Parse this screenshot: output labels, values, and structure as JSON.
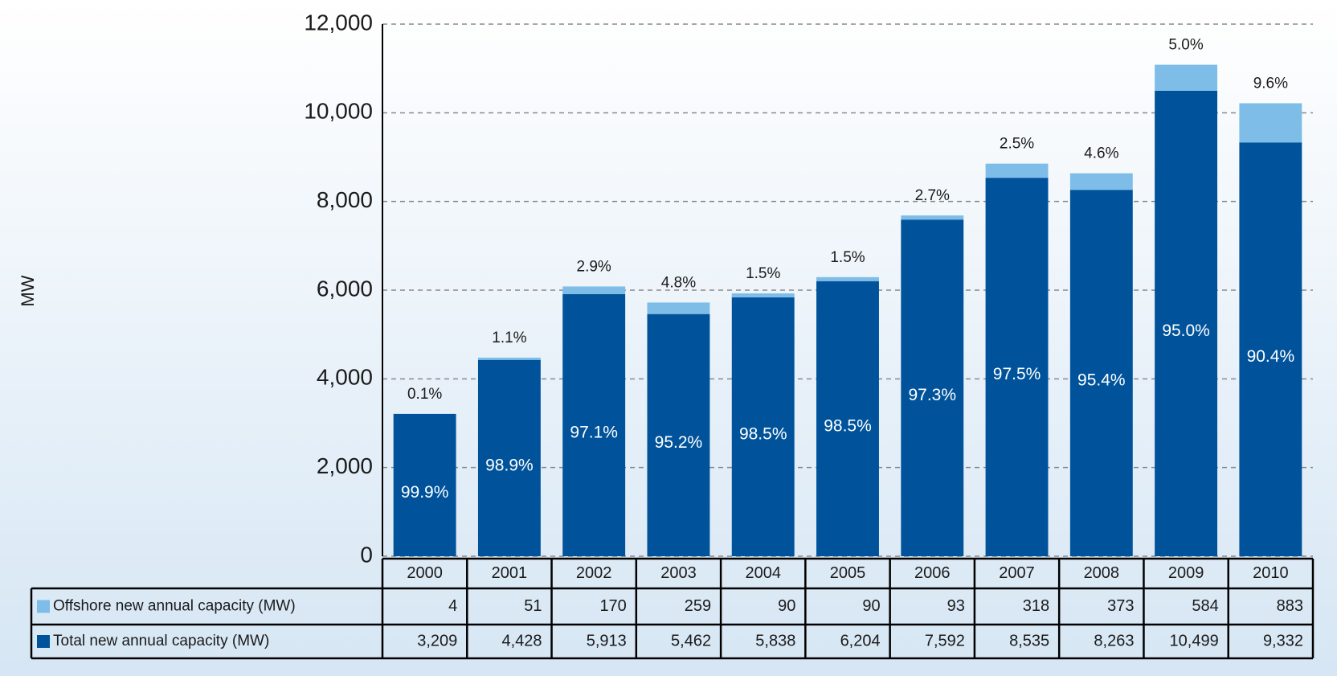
{
  "chart_data": {
    "type": "stacked_bar",
    "ylabel": "MW",
    "categories": [
      "2000",
      "2001",
      "2002",
      "2003",
      "2004",
      "2005",
      "2006",
      "2007",
      "2008",
      "2009",
      "2010"
    ],
    "series": [
      {
        "name": "Total new annual capacity (MW)",
        "color": "#00539b",
        "values": [
          3209,
          4428,
          5913,
          5462,
          5838,
          6204,
          7592,
          8535,
          8263,
          10499,
          9332
        ],
        "value_labels": [
          "3,209",
          "4,428",
          "5,913",
          "5,462",
          "5,838",
          "6,204",
          "7,592",
          "8,535",
          "8,263",
          "10,499",
          "9,332"
        ],
        "shares": [
          "99.9%",
          "98.9%",
          "97.1%",
          "95.2%",
          "98.5%",
          "98.5%",
          "97.3%",
          "97.5%",
          "95.4%",
          "95.0%",
          "90.4%"
        ]
      },
      {
        "name": "Offshore new annual capacity (MW)",
        "color": "#7dbde8",
        "values": [
          4,
          51,
          170,
          259,
          90,
          90,
          93,
          318,
          373,
          584,
          883
        ],
        "value_labels": [
          "4",
          "51",
          "170",
          "259",
          "90",
          "90",
          "93",
          "318",
          "373",
          "584",
          "883"
        ],
        "shares": [
          "0.1%",
          "1.1%",
          "2.9%",
          "4.8%",
          "1.5%",
          "1.5%",
          "2.7%",
          "2.5%",
          "4.6%",
          "5.0%",
          "9.6%"
        ]
      }
    ],
    "ylim": [
      0,
      12000
    ],
    "yticks": [
      0,
      {
        "value": 2000,
        "label": "2,000"
      },
      {
        "value": 4000,
        "label": "4,000"
      },
      {
        "value": 6000,
        "label": "6,000"
      },
      {
        "value": 8000,
        "label": "8,000"
      },
      {
        "value": 10000,
        "label": "10,000"
      },
      {
        "value": 12000,
        "label": "12,000"
      }
    ],
    "grid": true
  }
}
